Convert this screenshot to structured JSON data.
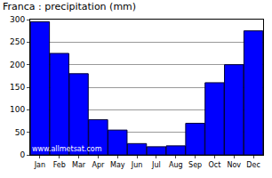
{
  "chart_data": {
    "type": "bar",
    "title": "Franca : precipitation (mm)",
    "categories": [
      "Jan",
      "Feb",
      "Mar",
      "Apr",
      "May",
      "Jun",
      "Jul",
      "Aug",
      "Sep",
      "Oct",
      "Nov",
      "Dec"
    ],
    "values": [
      295,
      225,
      180,
      78,
      55,
      25,
      18,
      20,
      70,
      160,
      200,
      275
    ],
    "color": "#0000ff",
    "ylim": [
      0,
      300
    ],
    "yticks": [
      0,
      50,
      100,
      150,
      200,
      250,
      300
    ],
    "grid": true,
    "annotation": "www.allmetsat.com"
  }
}
